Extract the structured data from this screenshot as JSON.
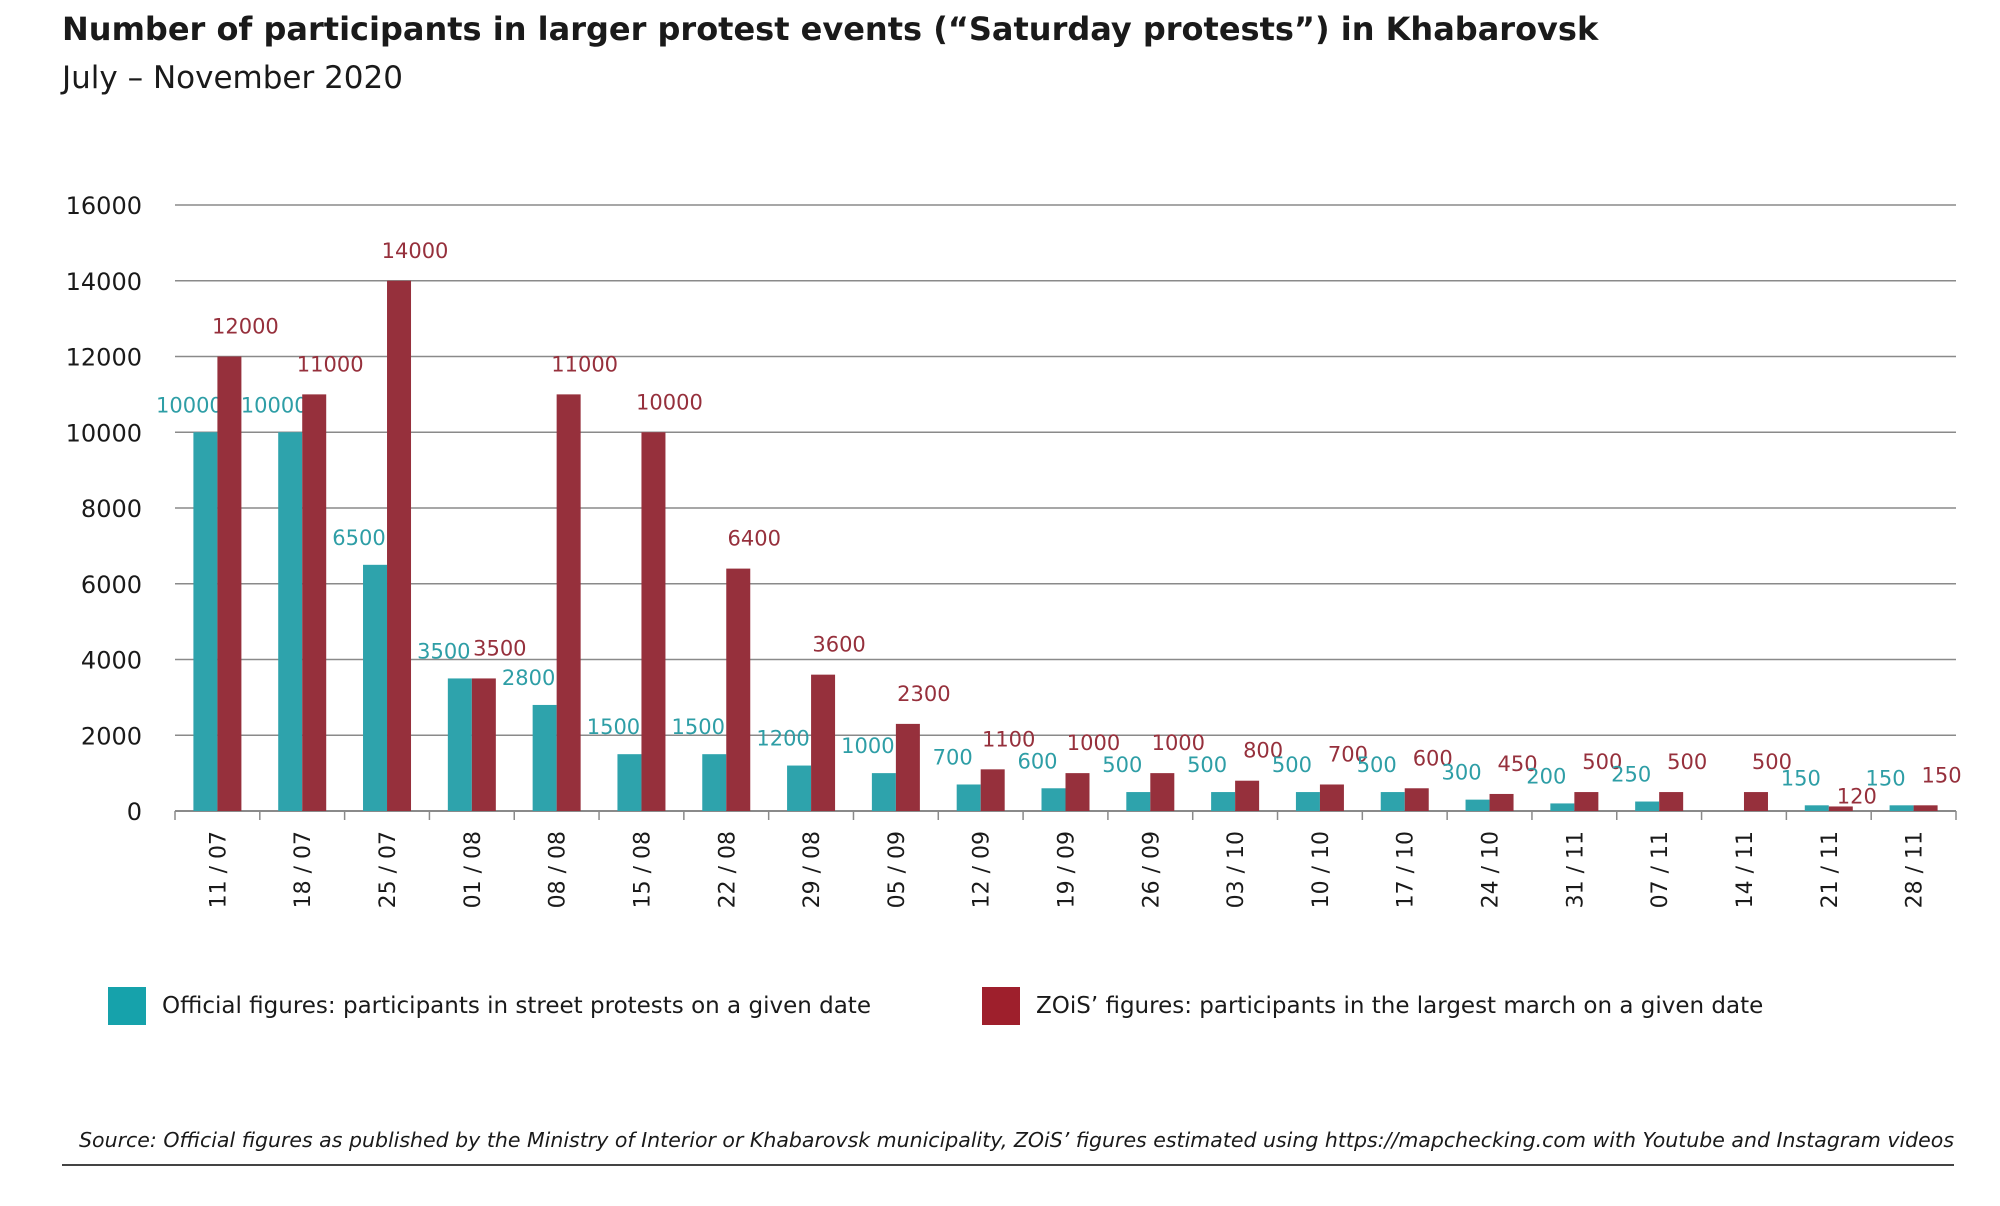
{
  "chart_data": {
    "type": "bar",
    "title": "Number of participants in larger protest events (“Saturday protests”) in Khabarovsk",
    "subtitle": "July – November 2020",
    "categories": [
      "11 / 07",
      "18 / 07",
      "25 / 07",
      "01 / 08",
      "08 / 08",
      "15 / 08",
      "22 / 08",
      "29 / 08",
      "05 / 09",
      "12 / 09",
      "19 / 09",
      "26 / 09",
      "03 / 10",
      "10 / 10",
      "17 / 10",
      "24 / 10",
      "31 / 11",
      "07 / 11",
      "14 / 11",
      "21 / 11",
      "28 / 11"
    ],
    "series": [
      {
        "name": "Official figures: participants in street protests on a given date",
        "color": "#2ea3ac",
        "label_color": "#2e9ea6",
        "values": [
          10000,
          10000,
          6500,
          3500,
          2800,
          1500,
          1500,
          1200,
          1000,
          700,
          600,
          500,
          500,
          500,
          500,
          300,
          200,
          250,
          null,
          150,
          150
        ]
      },
      {
        "name": "ZOiS’ figures: participants in the largest march on a given date",
        "color": "#96303c",
        "label_color": "#96303c",
        "values": [
          12000,
          11000,
          14000,
          3500,
          11000,
          10000,
          6400,
          3600,
          2300,
          1100,
          1000,
          1000,
          800,
          700,
          600,
          450,
          500,
          500,
          500,
          120,
          150
        ]
      }
    ],
    "yticks": [
      0,
      2000,
      4000,
      6000,
      8000,
      10000,
      12000,
      14000,
      16000
    ],
    "ylim": [
      0,
      16000
    ],
    "xlabel": "",
    "ylabel": "",
    "grid": true,
    "legend": "bottom"
  },
  "source": "Source: Official figures as published by the Ministry of Interior or Khabarovsk municipality, ZOiS’ figures estimated using https://mapchecking.com with Youtube and Instagram videos",
  "legend_swatch_colors": {
    "official": "#16a2ab",
    "zois": "#9e1f2c"
  }
}
